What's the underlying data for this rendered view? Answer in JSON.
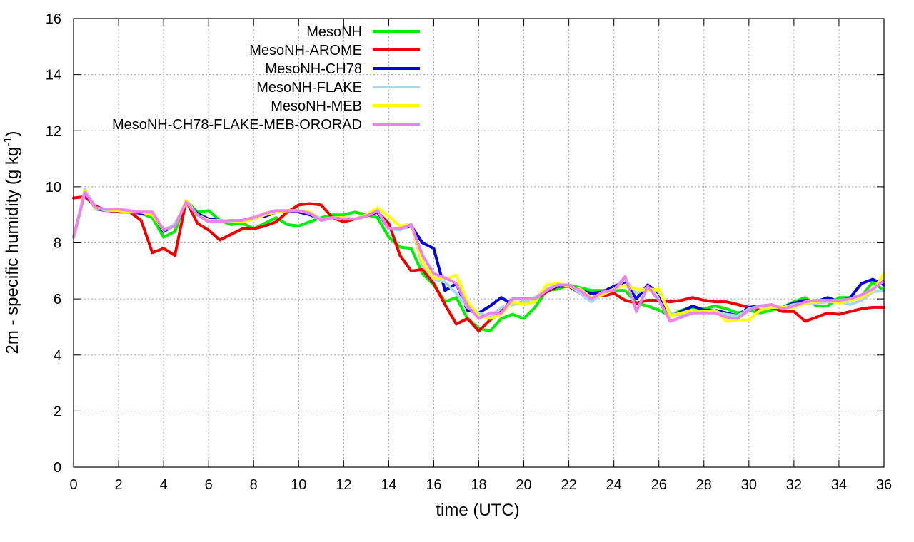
{
  "chart_data": {
    "type": "line",
    "title": "",
    "xlabel": "time (UTC)",
    "ylabel": {
      "main": "2m - specific humidity (g kg",
      "sup": "-1",
      "close": ")"
    },
    "xlim": [
      0,
      36
    ],
    "ylim": [
      0,
      16
    ],
    "x_ticks": [
      0,
      2,
      4,
      6,
      8,
      10,
      12,
      14,
      16,
      18,
      20,
      22,
      24,
      26,
      28,
      30,
      32,
      34,
      36
    ],
    "y_ticks": [
      0,
      2,
      4,
      6,
      8,
      10,
      12,
      14,
      16
    ],
    "grid": true,
    "legend_position": "top-left",
    "x": [
      0,
      0.5,
      1,
      1.5,
      2,
      2.5,
      3,
      3.5,
      4,
      4.5,
      5,
      5.5,
      6,
      6.5,
      7,
      7.5,
      8,
      8.5,
      9,
      9.5,
      10,
      10.5,
      11,
      11.5,
      12,
      12.5,
      13,
      13.5,
      14,
      14.5,
      15,
      15.5,
      16,
      16.5,
      17,
      17.5,
      18,
      18.5,
      19,
      19.5,
      20,
      20.5,
      21,
      21.5,
      22,
      22.5,
      23,
      23.5,
      24,
      24.5,
      25,
      25.5,
      26,
      26.5,
      27,
      27.5,
      28,
      28.5,
      29,
      29.5,
      30,
      30.5,
      31,
      31.5,
      32,
      32.5,
      33,
      33.5,
      34,
      34.5,
      35,
      35.5,
      36
    ],
    "series": [
      {
        "name": "MesoNH",
        "color": "#00ee00",
        "values": [
          8.2,
          9.8,
          9.2,
          9.2,
          9.15,
          9.1,
          9.05,
          8.9,
          8.2,
          8.4,
          9.5,
          9.1,
          9.15,
          8.8,
          8.65,
          8.7,
          8.5,
          8.7,
          8.9,
          8.65,
          8.6,
          8.75,
          8.9,
          9.0,
          9.0,
          9.1,
          9.0,
          8.9,
          8.2,
          7.85,
          7.8,
          6.9,
          6.5,
          5.9,
          6.05,
          5.3,
          4.95,
          4.85,
          5.3,
          5.45,
          5.3,
          5.7,
          6.3,
          6.35,
          6.5,
          6.4,
          6.3,
          6.3,
          6.3,
          6.3,
          5.85,
          5.75,
          5.6,
          5.4,
          5.6,
          5.7,
          5.65,
          5.75,
          5.65,
          5.5,
          5.6,
          5.5,
          5.6,
          5.7,
          5.9,
          6.05,
          5.75,
          5.75,
          6.05,
          6.05,
          6.1,
          6.6,
          6.3
        ]
      },
      {
        "name": "MesoNH-AROME",
        "color": "#ee0000",
        "values": [
          9.6,
          9.65,
          9.3,
          9.15,
          9.1,
          9.1,
          8.8,
          7.65,
          7.8,
          7.55,
          9.5,
          8.7,
          8.45,
          8.1,
          8.3,
          8.5,
          8.5,
          8.6,
          8.75,
          9.1,
          9.35,
          9.4,
          9.35,
          8.9,
          8.75,
          8.85,
          8.95,
          9.1,
          8.7,
          7.55,
          7.0,
          7.05,
          6.55,
          5.8,
          5.1,
          5.3,
          4.85,
          5.25,
          5.55,
          6.0,
          6.0,
          6.0,
          6.25,
          6.45,
          6.45,
          6.2,
          6.2,
          6.1,
          6.2,
          5.95,
          5.85,
          5.95,
          5.95,
          5.9,
          5.95,
          6.05,
          5.95,
          5.9,
          5.9,
          5.8,
          5.7,
          5.6,
          5.7,
          5.55,
          5.55,
          5.2,
          5.35,
          5.5,
          5.45,
          5.55,
          5.65,
          5.7,
          5.7
        ]
      },
      {
        "name": "MesoNH-CH78",
        "color": "#0000dd",
        "values": [
          8.2,
          9.8,
          9.2,
          9.15,
          9.15,
          9.1,
          9.05,
          9.05,
          8.4,
          8.65,
          9.45,
          9.05,
          8.85,
          8.8,
          8.75,
          8.8,
          8.9,
          8.95,
          9.1,
          9.15,
          9.1,
          9.0,
          8.85,
          8.9,
          8.9,
          8.85,
          9.0,
          9.1,
          8.5,
          8.5,
          8.6,
          8.0,
          7.8,
          6.3,
          6.55,
          5.6,
          5.5,
          5.75,
          6.05,
          5.8,
          5.9,
          6.05,
          6.3,
          6.45,
          6.45,
          6.3,
          6.2,
          6.25,
          6.45,
          6.6,
          6.0,
          6.5,
          6.2,
          5.4,
          5.55,
          5.75,
          5.6,
          5.6,
          5.5,
          5.4,
          5.7,
          5.75,
          5.7,
          5.7,
          5.85,
          5.95,
          5.9,
          6.05,
          5.9,
          6.05,
          6.55,
          6.7,
          6.5
        ]
      },
      {
        "name": "MesoNH-FLAKE",
        "color": "#a8d8ea",
        "values": [
          8.2,
          9.9,
          9.25,
          9.15,
          9.15,
          9.1,
          9.1,
          9.1,
          8.45,
          8.65,
          9.45,
          9.0,
          8.8,
          8.8,
          8.75,
          8.75,
          8.85,
          9.0,
          9.1,
          9.15,
          9.15,
          9.1,
          8.85,
          8.9,
          8.9,
          8.85,
          9.0,
          9.15,
          8.5,
          8.45,
          8.65,
          7.2,
          6.7,
          6.6,
          6.2,
          5.7,
          5.5,
          5.35,
          5.7,
          5.8,
          5.9,
          6.05,
          6.35,
          6.5,
          6.5,
          6.2,
          5.9,
          6.2,
          6.35,
          6.7,
          6.2,
          6.4,
          6.25,
          5.5,
          5.4,
          5.55,
          5.55,
          5.55,
          5.45,
          5.4,
          5.65,
          5.75,
          5.7,
          5.7,
          5.8,
          5.85,
          5.85,
          5.9,
          5.9,
          5.8,
          5.95,
          6.25,
          6.3
        ]
      },
      {
        "name": "MesoNH-MEB",
        "color": "#ffff00",
        "values": [
          8.2,
          9.85,
          9.2,
          9.2,
          9.15,
          9.1,
          9.1,
          9.0,
          8.45,
          8.6,
          9.5,
          9.0,
          8.8,
          8.75,
          8.8,
          8.75,
          8.85,
          9.0,
          9.1,
          9.15,
          9.15,
          9.1,
          8.8,
          8.9,
          8.9,
          8.85,
          9.0,
          9.25,
          8.95,
          8.6,
          8.65,
          7.3,
          6.75,
          6.7,
          6.85,
          5.9,
          5.4,
          5.3,
          5.45,
          5.9,
          5.8,
          5.9,
          6.5,
          6.55,
          6.45,
          6.35,
          6.05,
          6.15,
          6.35,
          6.5,
          6.35,
          6.3,
          6.35,
          5.4,
          5.5,
          5.6,
          5.55,
          5.6,
          5.2,
          5.25,
          5.25,
          5.6,
          5.7,
          5.7,
          5.7,
          5.85,
          5.9,
          5.95,
          5.85,
          5.95,
          6.05,
          6.3,
          6.9
        ]
      },
      {
        "name": "MesoNH-CH78-FLAKE-MEB-ORORAD",
        "color": "#ee82ee",
        "values": [
          8.2,
          9.8,
          9.25,
          9.2,
          9.2,
          9.15,
          9.1,
          9.1,
          8.45,
          8.6,
          9.45,
          9.0,
          8.75,
          8.75,
          8.8,
          8.8,
          8.9,
          9.05,
          9.15,
          9.15,
          9.15,
          9.05,
          8.8,
          8.9,
          8.85,
          8.85,
          8.95,
          9.15,
          8.5,
          8.5,
          8.65,
          7.55,
          6.9,
          6.75,
          6.55,
          5.75,
          5.3,
          5.5,
          5.5,
          6.0,
          6.0,
          6.0,
          6.3,
          6.5,
          6.5,
          6.3,
          6.0,
          6.25,
          6.3,
          6.8,
          5.55,
          6.45,
          5.95,
          5.2,
          5.35,
          5.5,
          5.5,
          5.5,
          5.35,
          5.3,
          5.6,
          5.75,
          5.8,
          5.65,
          5.75,
          5.9,
          5.95,
          5.95,
          5.95,
          6.0,
          6.15,
          6.35,
          6.65
        ]
      }
    ]
  }
}
